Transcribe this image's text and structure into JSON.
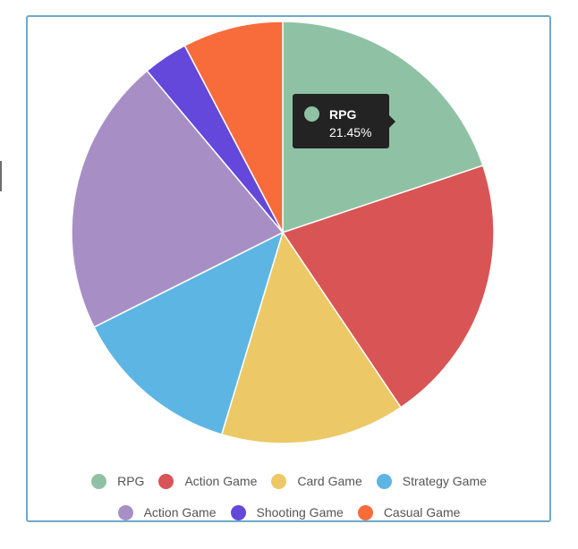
{
  "chart_data": {
    "type": "pie",
    "slices": [
      {
        "label": "RPG",
        "value": 21.45,
        "color": "#8fc2a4"
      },
      {
        "label": "Action Game",
        "value": 22.35,
        "color": "#d95454"
      },
      {
        "label": "Card Game",
        "value": 15.25,
        "color": "#ecc966"
      },
      {
        "label": "Strategy Game",
        "value": 13.96,
        "color": "#5db5e3"
      },
      {
        "label": "Action Game",
        "value": 23.0,
        "color": "#a78fc6"
      },
      {
        "label": "Shooting Game",
        "value": 3.7,
        "color": "#6348db"
      },
      {
        "label": "Casual Game",
        "value": 8.3,
        "color": "#f86b3a"
      }
    ],
    "legend_position": "bottom",
    "tooltip": {
      "label": "RPG",
      "value_text": "21.45%",
      "color": "#8fc2a4"
    }
  }
}
